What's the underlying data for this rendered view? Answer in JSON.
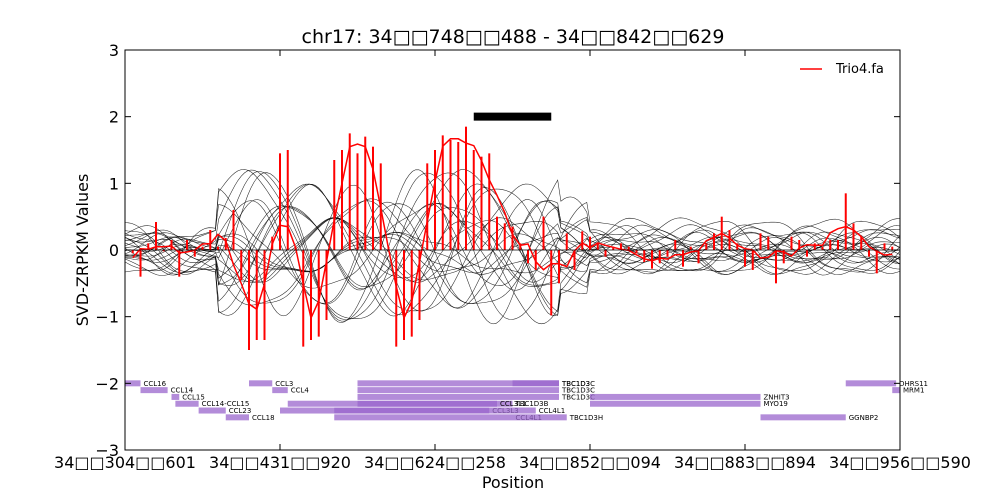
{
  "chart_data": {
    "type": "line",
    "title": "chr17: 34□□748□□488 - 34□□842□□629",
    "xlabel": "Position",
    "ylabel": "SVD-ZRPKM Values",
    "ylim": [
      -3,
      3
    ],
    "yticks": [
      "3",
      "2",
      "1",
      "0",
      "−1",
      "−2",
      "−3"
    ],
    "xticks": [
      "34□□304□□601",
      "34□□431□□920",
      "34□□624□□258",
      "34□□852□□094",
      "34□□883□□894",
      "34□□956□□590"
    ],
    "legend": {
      "position": "top-right",
      "label": "Trio4.fa",
      "color": "#ff0000"
    },
    "highlight_bar": {
      "y": 2.0,
      "x_range": [
        45,
        55
      ]
    },
    "x_domain": [
      0,
      100
    ],
    "series": [
      {
        "name": "Trio4.fa",
        "color": "#ff0000",
        "x": [
          1,
          2,
          3,
          4,
          5,
          6,
          7,
          8,
          9,
          10,
          11,
          12,
          13,
          14,
          15,
          16,
          17,
          18,
          19,
          20,
          21,
          22,
          23,
          24,
          25,
          26,
          27,
          28,
          29,
          30,
          31,
          32,
          33,
          34,
          35,
          36,
          37,
          38,
          39,
          40,
          41,
          42,
          43,
          44,
          45,
          46,
          47,
          48,
          49,
          50,
          51,
          52,
          53,
          54,
          55,
          56,
          57,
          58,
          59,
          60,
          61,
          62,
          63,
          64,
          65,
          66,
          67,
          68,
          69,
          70,
          71,
          72,
          73,
          74,
          75,
          76,
          77,
          78,
          79,
          80,
          81,
          82,
          83,
          84,
          85,
          86,
          87,
          88,
          89,
          90,
          91,
          92,
          93,
          94,
          95,
          96,
          97,
          98,
          99
        ],
        "y": [
          -0.05,
          -0.4,
          0.1,
          0.42,
          -0.02,
          0.15,
          -0.4,
          0.15,
          -0.1,
          0.05,
          0.3,
          0.05,
          0.18,
          0.6,
          -0.45,
          -1.5,
          -1.35,
          -1.35,
          0.2,
          1.45,
          1.5,
          0.05,
          -1.45,
          -1.35,
          -1.3,
          -1.05,
          1.35,
          1.5,
          1.75,
          1.45,
          1.7,
          1.55,
          1.3,
          0.05,
          -1.45,
          -1.35,
          -1.3,
          -1.05,
          1.3,
          1.5,
          1.72,
          1.65,
          1.62,
          1.85,
          1.5,
          1.4,
          1.45,
          0.5,
          0.4,
          0.35,
          0.1,
          -0.2,
          -0.3,
          0.5,
          -0.98,
          -0.5,
          0.25,
          -0.3,
          0.28,
          0.2,
          0.1,
          -0.1,
          0.05,
          0.1,
          0.05,
          -0.05,
          -0.18,
          -0.28,
          -0.2,
          -0.1,
          0.15,
          -0.25,
          0.05,
          -0.2,
          0.1,
          0.25,
          0.5,
          0.3,
          0.1,
          -0.25,
          -0.3,
          0.25,
          0.2,
          -0.5,
          -0.2,
          0.2,
          0.15,
          -0.1,
          0.1,
          0.05,
          0.15,
          0.15,
          0.85,
          0.4,
          0.2,
          -0.1,
          -0.35,
          0.1,
          0.05
        ]
      }
    ]
  },
  "genes": [
    {
      "label": "CCL16",
      "row": 0,
      "start": 0,
      "end": 2
    },
    {
      "label": "CCL14",
      "row": 1,
      "start": 2,
      "end": 5.5
    },
    {
      "label": "CCL15",
      "row": 2,
      "start": 6,
      "end": 7
    },
    {
      "label": "CCL14-CCL15",
      "row": 3,
      "start": 6.5,
      "end": 9.5
    },
    {
      "label": "CCL23",
      "row": 4,
      "start": 9.5,
      "end": 13
    },
    {
      "label": "CCL18",
      "row": 5,
      "start": 13,
      "end": 16
    },
    {
      "label": "CCL3",
      "row": 0,
      "start": 16,
      "end": 19
    },
    {
      "label": "CCL4",
      "row": 1,
      "start": 19,
      "end": 21
    },
    {
      "label": "TBC1D3B",
      "row": 3,
      "start": 21,
      "end": 50
    },
    {
      "label": "CCL3L1",
      "row": 3,
      "start": 30,
      "end": 48
    },
    {
      "label": "CCL3L3",
      "row": 4,
      "start": 20,
      "end": 47
    },
    {
      "label": "CCL4L1",
      "row": 4,
      "start": 27,
      "end": 53
    },
    {
      "label": "CCL4L1",
      "row": 5,
      "start": 27,
      "end": 50
    },
    {
      "label": "TBC1D3H",
      "row": 5,
      "start": 50,
      "end": 57
    },
    {
      "label": "TBC1D3",
      "row": 0,
      "start": 30,
      "end": 56
    },
    {
      "label": "TBC1D3C",
      "row": 0,
      "start": 50,
      "end": 56
    },
    {
      "label": "TBC1D3C",
      "row": 1,
      "start": 30,
      "end": 56
    },
    {
      "label": "TBC1D3C",
      "row": 2,
      "start": 30,
      "end": 56
    },
    {
      "label": "ZNHIT3",
      "row": 2,
      "start": 60,
      "end": 82
    },
    {
      "label": "MYO19",
      "row": 3,
      "start": 60,
      "end": 82
    },
    {
      "label": "GGNBP2",
      "row": 5,
      "start": 82,
      "end": 93
    },
    {
      "label": "DHRS11",
      "row": 0,
      "start": 93,
      "end": 99.5
    },
    {
      "label": "MRM1",
      "row": 1,
      "start": 99,
      "end": 100
    }
  ],
  "colors": {
    "signal": "#ff0000",
    "background_samples": "#000000",
    "gene_track": "#9966cc",
    "highlight_bar": "#000000"
  }
}
